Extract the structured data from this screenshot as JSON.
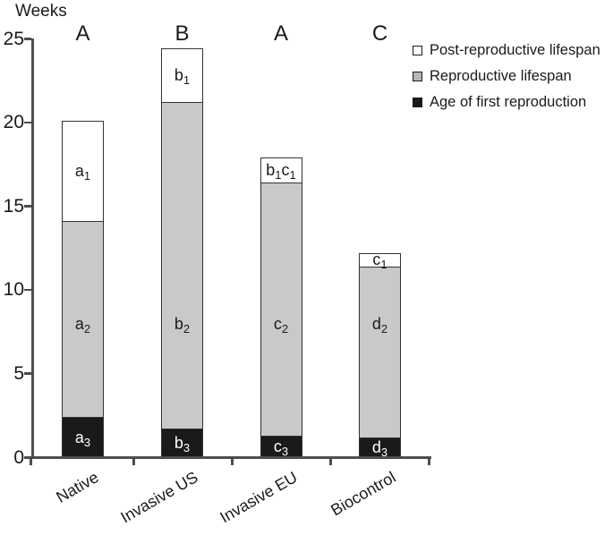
{
  "title": "Weeks",
  "legend": {
    "items": [
      {
        "name": "post-reproductive-lifespan",
        "label": "Post-reproductive lifespan",
        "swatch_color": "#ffffff"
      },
      {
        "name": "reproductive-lifespan",
        "label": "Reproductive lifespan",
        "swatch_color": "#b5b5b5"
      },
      {
        "name": "age-of-first-reproduction",
        "label": "Age of first reproduction",
        "swatch_color": "#1a1a1a"
      }
    ]
  },
  "colors": {
    "axis": "#4d4d4d",
    "bar_border": "#333333",
    "bar_white": "#ffffff",
    "bar_gray": "#c9c9c9",
    "bar_black": "#1a1a1a",
    "label_on_dark": "#ffffff",
    "label_on_light": "#1a1a1a"
  },
  "chart_data": {
    "type": "bar",
    "subtype": "stacked-vertical",
    "title": "Weeks",
    "ylabel": "Weeks",
    "xlabel": "",
    "ylim": [
      0,
      25
    ],
    "yticks": [
      0,
      5,
      10,
      15,
      20,
      25
    ],
    "grid": false,
    "legend_position": "upper-right",
    "categories": [
      "Native",
      "Invasive US",
      "Invasive EU",
      "Biocontrol"
    ],
    "group_letters": [
      "A",
      "B",
      "A",
      "C"
    ],
    "totals": [
      20.1,
      24.4,
      17.9,
      12.2
    ],
    "series": [
      {
        "name": "Age of first reproduction",
        "stack_order": "bottom",
        "fill": "#1a1a1a",
        "label_color": "#ffffff",
        "values": [
          2.4,
          1.7,
          1.3,
          1.2
        ],
        "segment_labels": [
          [
            [
              "a",
              "3"
            ]
          ],
          [
            [
              "b",
              "3"
            ]
          ],
          [
            [
              "c",
              "3"
            ]
          ],
          [
            [
              "d",
              "3"
            ]
          ]
        ]
      },
      {
        "name": "Reproductive lifespan",
        "stack_order": "middle",
        "fill": "#c9c9c9",
        "label_color": "#1a1a1a",
        "values": [
          11.7,
          19.5,
          15.1,
          10.2
        ],
        "segment_labels": [
          [
            [
              "a",
              "2"
            ]
          ],
          [
            [
              "b",
              "2"
            ]
          ],
          [
            [
              "c",
              "2"
            ]
          ],
          [
            [
              "d",
              "2"
            ]
          ]
        ]
      },
      {
        "name": "Post-reproductive lifespan",
        "stack_order": "top",
        "fill": "#ffffff",
        "label_color": "#1a1a1a",
        "values": [
          6.0,
          3.2,
          1.5,
          0.8
        ],
        "segment_labels": [
          [
            [
              "a",
              "1"
            ]
          ],
          [
            [
              "b",
              "1"
            ]
          ],
          [
            [
              "b",
              "1"
            ],
            [
              "c",
              "1"
            ]
          ],
          [
            [
              "c",
              "1"
            ]
          ]
        ]
      }
    ]
  }
}
